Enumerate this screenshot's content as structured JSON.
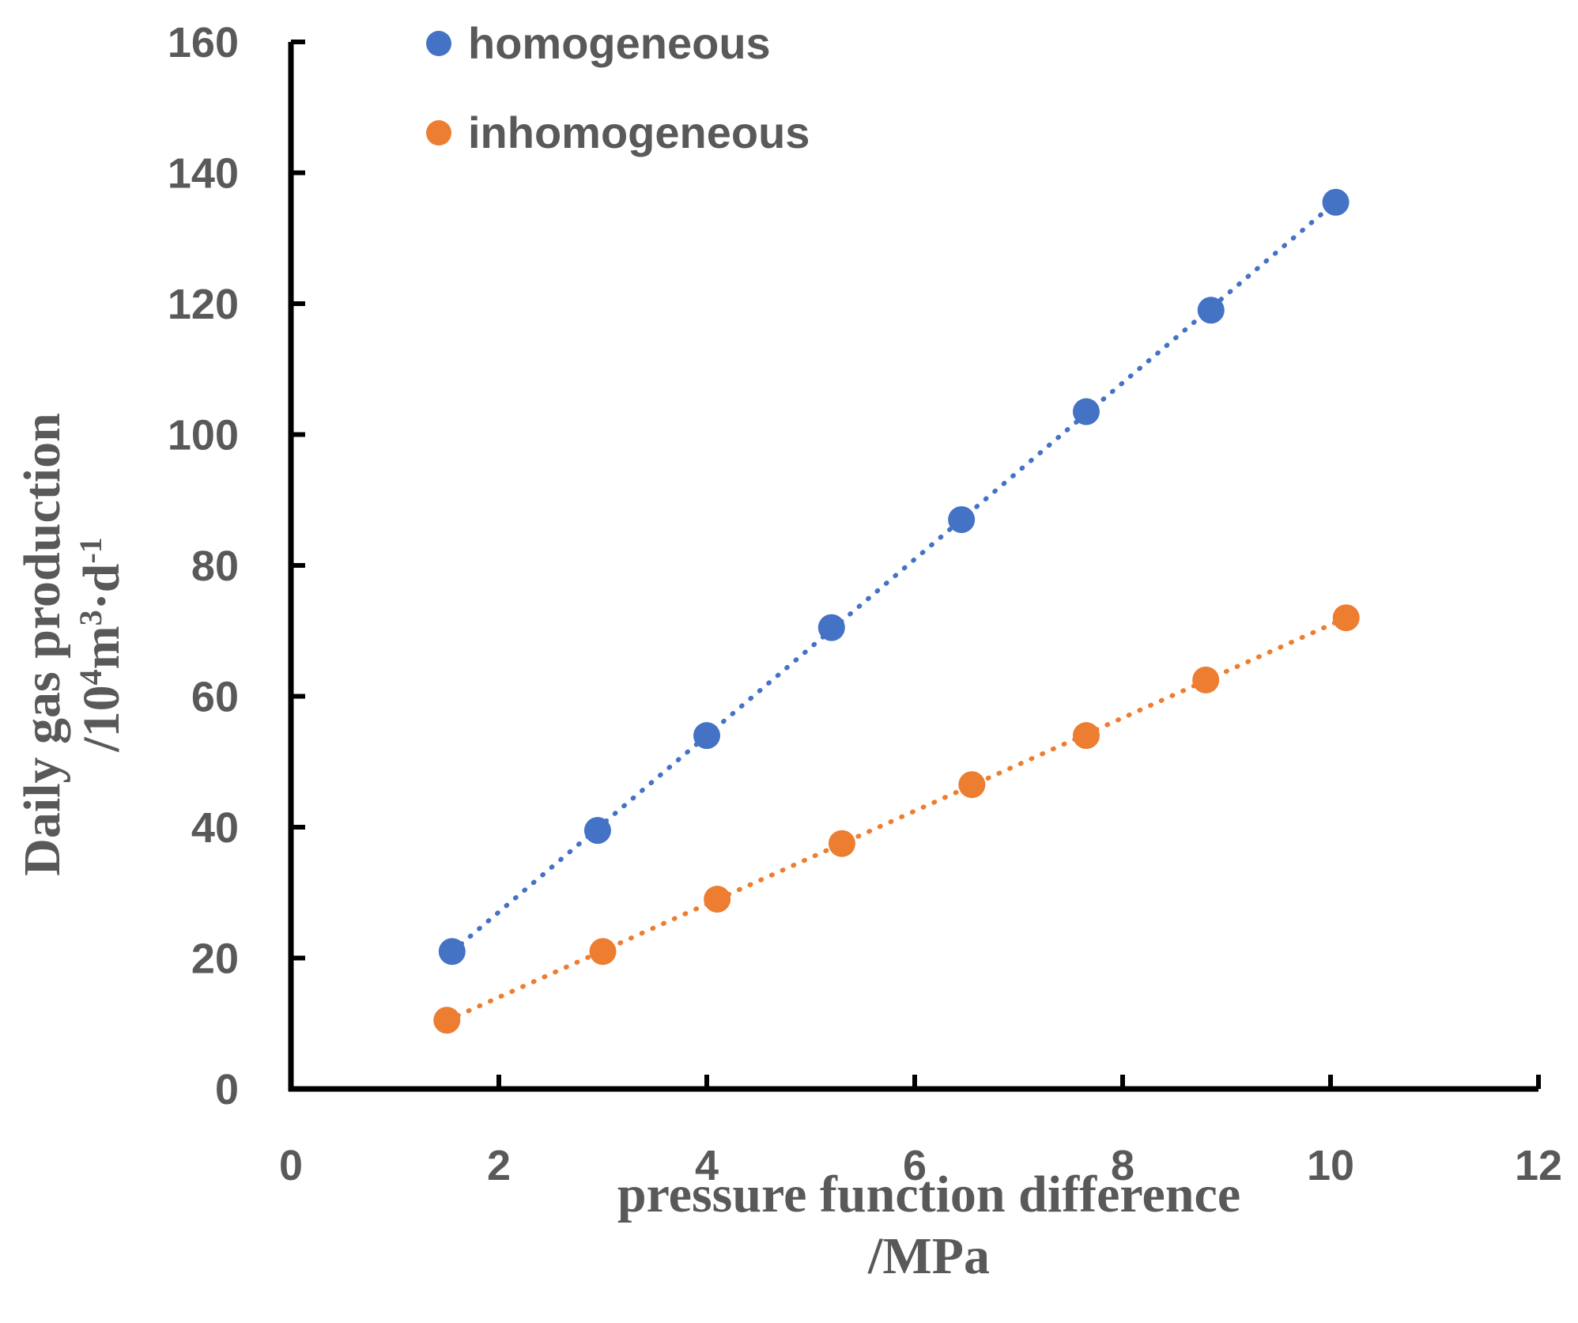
{
  "chart_data": {
    "type": "scatter",
    "title": "",
    "xlabel": "pressure function difference",
    "xlabel_unit": "/MPa",
    "ylabel": "Daily gas production",
    "ylabel_unit_parts": [
      "/10",
      "4",
      "m",
      "3",
      "·d",
      "-1"
    ],
    "xlim": [
      0,
      12
    ],
    "ylim": [
      0,
      160
    ],
    "x_ticks": [
      0,
      2,
      4,
      6,
      8,
      10,
      12
    ],
    "y_ticks": [
      0,
      20,
      40,
      60,
      80,
      100,
      120,
      140,
      160
    ],
    "grid": false,
    "legend_position": "top-left",
    "series": [
      {
        "name": "homogeneous",
        "color": "#4472C4",
        "trendline": "linear",
        "x": [
          1.55,
          2.95,
          4.0,
          5.2,
          6.45,
          7.65,
          8.85,
          10.05
        ],
        "y": [
          21,
          39.5,
          54,
          70.5,
          87,
          103.5,
          119,
          135.5
        ]
      },
      {
        "name": "inhomogeneous",
        "color": "#ED7D31",
        "trendline": "linear",
        "x": [
          1.5,
          3.0,
          4.1,
          5.3,
          6.55,
          7.65,
          8.8,
          10.15
        ],
        "y": [
          10.5,
          21,
          29,
          37.5,
          46.5,
          54,
          62.5,
          72
        ]
      }
    ]
  }
}
